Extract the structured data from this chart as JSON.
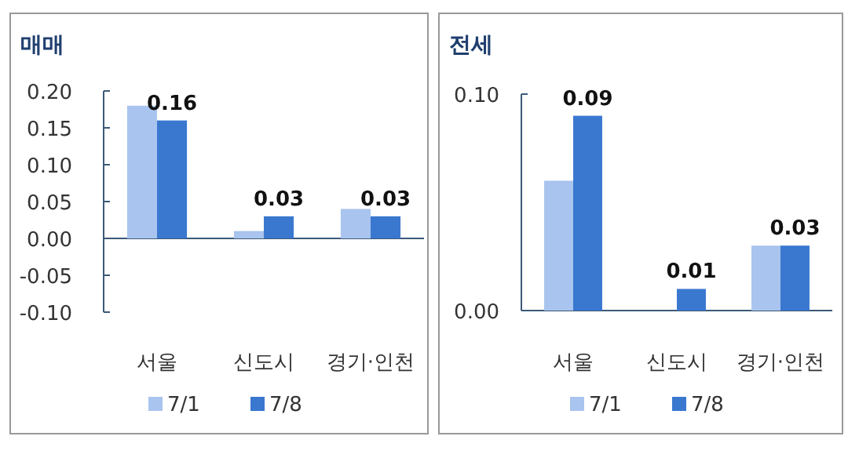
{
  "chart_data": [
    {
      "type": "bar",
      "title": "매매",
      "categories": [
        "서울",
        "신도시",
        "경기·인천"
      ],
      "ylim": [
        -0.1,
        0.2
      ],
      "yticks": [
        {
          "value": -0.1,
          "label": "-0.10"
        },
        {
          "value": -0.05,
          "label": "-0.05"
        },
        {
          "value": 0,
          "label": "0.00"
        },
        {
          "value": 0.05,
          "label": "0.05"
        },
        {
          "value": 0.1,
          "label": "0.10"
        },
        {
          "value": 0.15,
          "label": "0.15"
        },
        {
          "value": 0.2,
          "label": "0.20"
        }
      ],
      "legend": "bottom",
      "grid": false,
      "ref_lines": [
        {
          "axis": "y",
          "value": 0,
          "color": "#3b5a78"
        }
      ],
      "series": [
        {
          "name": "7/1",
          "color": "#a9c4ee",
          "values": [
            0.18,
            0.01,
            0.04
          ]
        },
        {
          "name": "7/8",
          "color": "#3a78d0",
          "values": [
            0.16,
            0.03,
            0.03
          ],
          "value_labels": [
            "0.16",
            "0.03",
            "0.03"
          ]
        }
      ]
    },
    {
      "type": "bar",
      "title": "전세",
      "categories": [
        "서울",
        "신도시",
        "경기·인천"
      ],
      "ylim": [
        0,
        0.1
      ],
      "yticks": [
        {
          "value": 0,
          "label": "0.00"
        },
        {
          "value": 0.1,
          "label": "0.10"
        }
      ],
      "legend": "bottom",
      "grid": false,
      "series": [
        {
          "name": "7/1",
          "color": "#a9c4ee",
          "values": [
            0.06,
            0,
            0.03
          ]
        },
        {
          "name": "7/8",
          "color": "#3a78d0",
          "values": [
            0.09,
            0.01,
            0.03
          ],
          "value_labels": [
            "0.09",
            "0.01",
            "0.03"
          ]
        }
      ]
    }
  ]
}
